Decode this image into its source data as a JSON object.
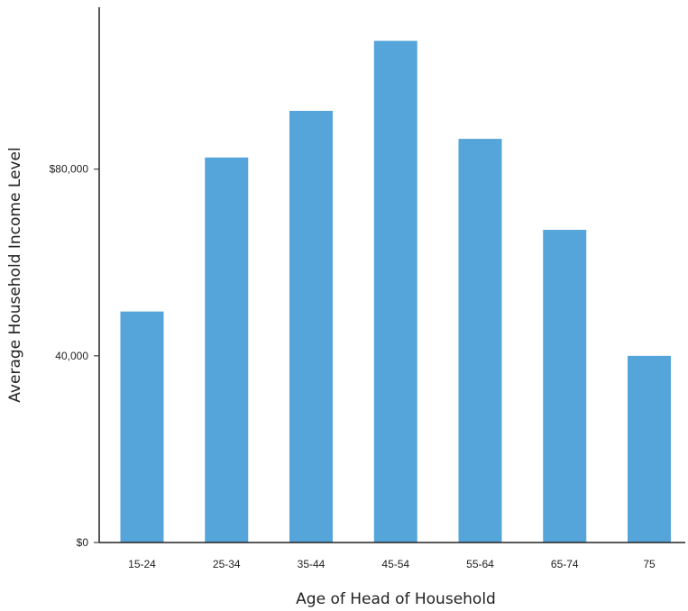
{
  "chart_data": {
    "type": "bar",
    "title": "",
    "xlabel": "Age of Head of Household",
    "ylabel": "Average Household Income Level",
    "categories": [
      "15-24",
      "25-34",
      "35-44",
      "45-54",
      "55-64",
      "65-74",
      "75"
    ],
    "values": [
      49500,
      82500,
      92500,
      107500,
      86500,
      67000,
      40000
    ],
    "ylim": [
      0,
      112000
    ],
    "yticks": [
      {
        "value": 0,
        "label": "$0"
      },
      {
        "value": 40000,
        "label": "40,000"
      },
      {
        "value": 80000,
        "label": "$80,000"
      }
    ],
    "bar_color": "#56a5da",
    "axis_color": "#222222",
    "grid": false,
    "legend": "none"
  }
}
